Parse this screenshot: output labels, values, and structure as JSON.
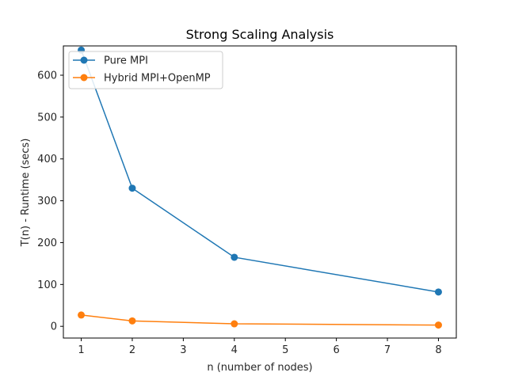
{
  "chart_data": {
    "type": "line",
    "title": "Strong Scaling Analysis",
    "xlabel": "n (number of nodes)",
    "ylabel": "T(n) - Runtime (secs)",
    "x": [
      1,
      2,
      4,
      8
    ],
    "xticks": [
      1,
      2,
      3,
      4,
      5,
      6,
      7,
      8
    ],
    "yticks": [
      0,
      100,
      200,
      300,
      400,
      500,
      600
    ],
    "xlim": [
      0.65,
      8.35
    ],
    "ylim": [
      -28,
      670
    ],
    "grid": false,
    "legend_position": "top-left",
    "series": [
      {
        "name": "Pure MPI",
        "color": "#1f77b4",
        "marker": "circle",
        "values": [
          660,
          330,
          165,
          82
        ]
      },
      {
        "name": "Hybrid MPI+OpenMP",
        "color": "#ff7f0e",
        "marker": "circle",
        "values": [
          27,
          13,
          6,
          3
        ]
      }
    ]
  }
}
